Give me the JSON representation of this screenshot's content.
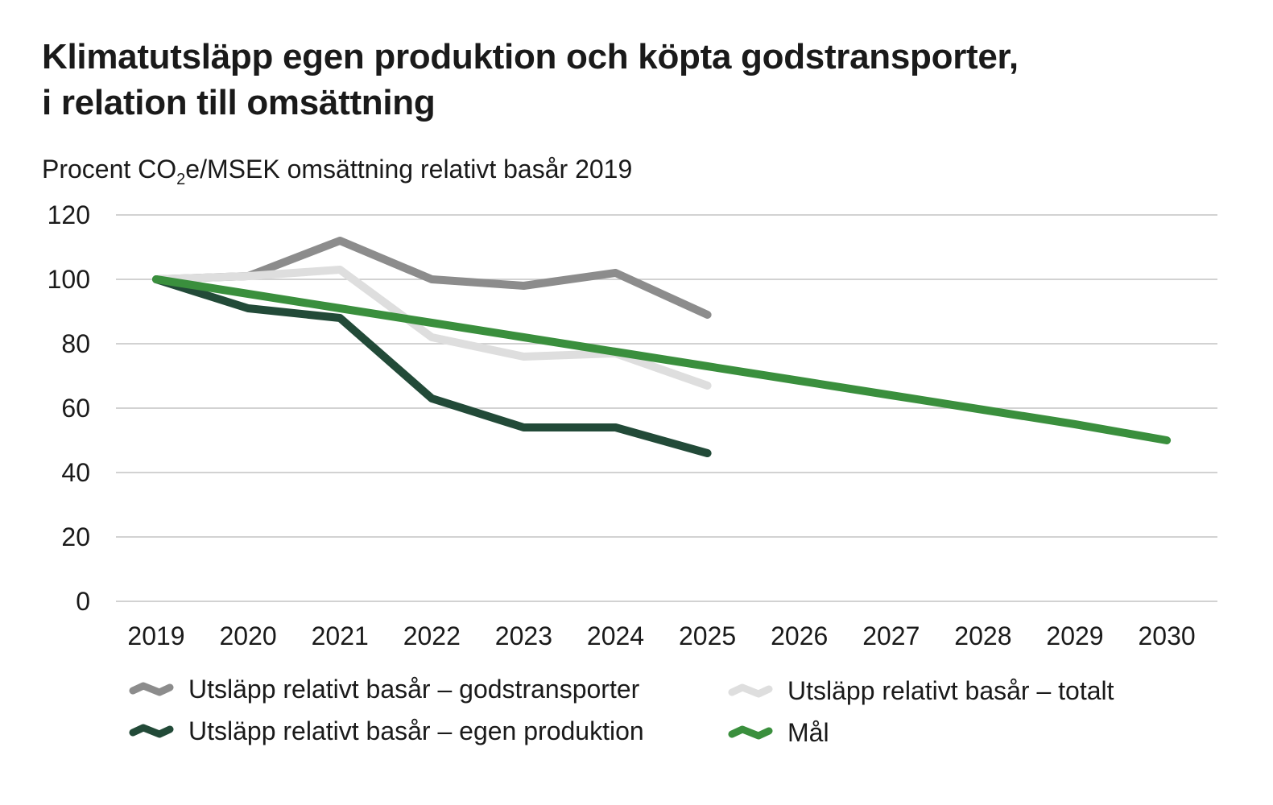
{
  "title": {
    "line1": "Klimatutsläpp egen produktion och köpta godstransporter,",
    "line2": "i relation till omsättning"
  },
  "subtitle": {
    "prefix": "Procent CO",
    "sub": "2",
    "suffix": "e/MSEK omsättning relativt basår 2019"
  },
  "chart_data": {
    "type": "line",
    "title": "Klimatutsläpp egen produktion och köpta godstransporter, i relation till omsättning",
    "ylabel": "Procent CO2e/MSEK omsättning relativt basår 2019",
    "xlabel": "",
    "categories": [
      "2019",
      "2020",
      "2021",
      "2022",
      "2023",
      "2024",
      "2025",
      "2026",
      "2027",
      "2028",
      "2029",
      "2030"
    ],
    "ylim": [
      0,
      120
    ],
    "yticks": [
      0,
      20,
      40,
      60,
      80,
      100,
      120
    ],
    "grid": true,
    "legend_position": "bottom",
    "series": [
      {
        "name": "Utsläpp relativt basår – godstransporter",
        "color": "#8c8c8c",
        "values": [
          100,
          101,
          112,
          100,
          98,
          102,
          89,
          null,
          null,
          null,
          null,
          null
        ]
      },
      {
        "name": "Utsläpp relativt basår – totalt",
        "color": "#dedede",
        "values": [
          100,
          101,
          103,
          82,
          76,
          77,
          67,
          null,
          null,
          null,
          null,
          null
        ]
      },
      {
        "name": "Utsläpp relativt basår – egen produktion",
        "color": "#224a38",
        "values": [
          100,
          91,
          88,
          63,
          54,
          54,
          46,
          null,
          null,
          null,
          null,
          null
        ]
      },
      {
        "name": "Mål",
        "color": "#3a8f3d",
        "values": [
          100,
          95.5,
          91,
          86.5,
          82,
          77.5,
          73,
          68.5,
          64,
          59.5,
          55,
          50
        ]
      }
    ]
  },
  "legend": {
    "items": [
      {
        "label": "Utsläpp relativt basår – godstransporter",
        "color": "#8c8c8c"
      },
      {
        "label": "Utsläpp relativt basår – totalt",
        "color": "#dedede"
      },
      {
        "label": "Utsläpp relativt basår – egen produktion",
        "color": "#224a38"
      },
      {
        "label": "Mål",
        "color": "#3a8f3d"
      }
    ]
  }
}
